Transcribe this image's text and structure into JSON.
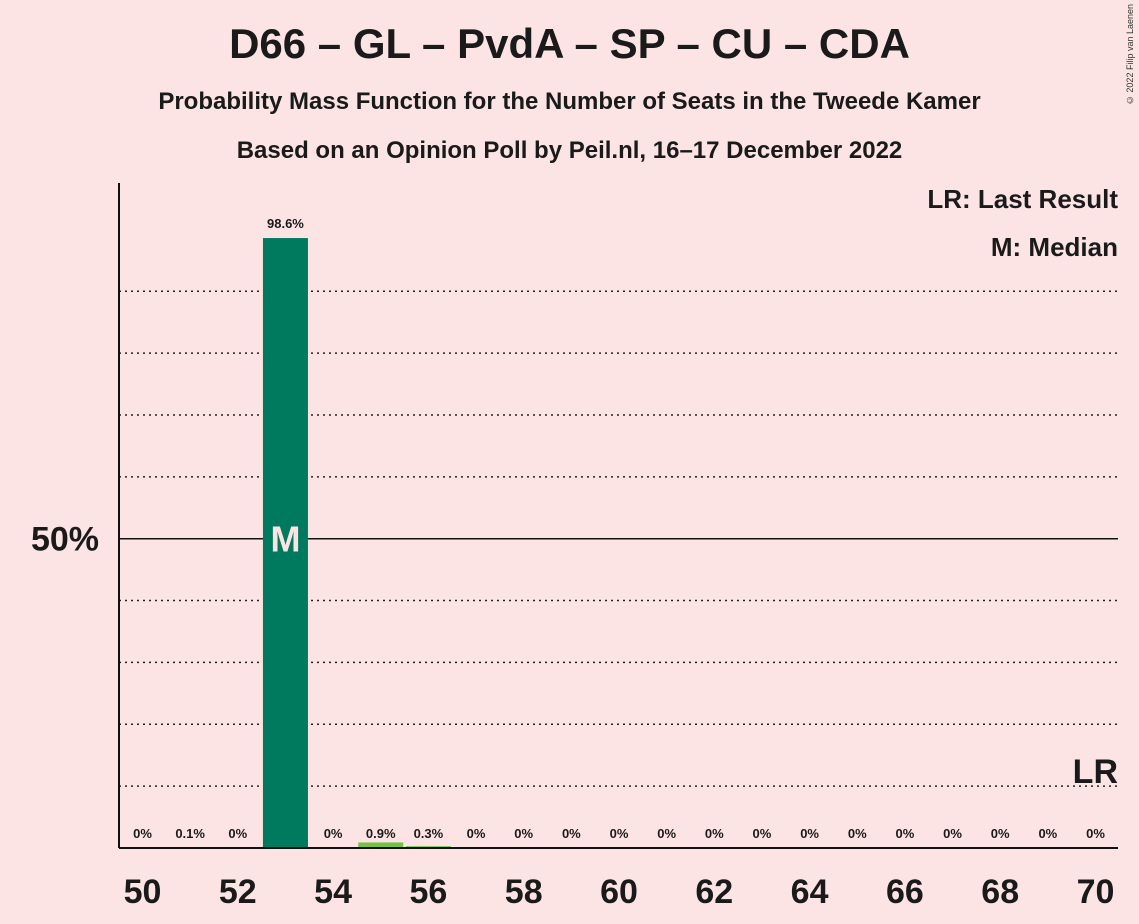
{
  "title": "D66 – GL – PvdA – SP – CU – CDA",
  "subtitle1": "Probability Mass Function for the Number of Seats in the Tweede Kamer",
  "subtitle2": "Based on an Opinion Poll by Peil.nl, 16–17 December 2022",
  "copyright": "© 2022 Filip van Laenen",
  "legend": {
    "lr": "LR: Last Result",
    "m": "M: Median"
  },
  "colors": {
    "background": "#fce4e4",
    "median_bar": "#007a5e",
    "other_bar": "#77c043",
    "text": "#1a1a1a"
  },
  "chart_data": {
    "type": "bar",
    "x": [
      50,
      51,
      52,
      53,
      54,
      55,
      56,
      57,
      58,
      59,
      60,
      61,
      62,
      63,
      64,
      65,
      66,
      67,
      68,
      69,
      70
    ],
    "values": [
      0,
      0.1,
      0,
      98.6,
      0,
      0.9,
      0.3,
      0,
      0,
      0,
      0,
      0,
      0,
      0,
      0,
      0,
      0,
      0,
      0,
      0,
      0
    ],
    "labels": [
      "0%",
      "0.1%",
      "0%",
      "98.6%",
      "0%",
      "0.9%",
      "0.3%",
      "0%",
      "0%",
      "0%",
      "0%",
      "0%",
      "0%",
      "0%",
      "0%",
      "0%",
      "0%",
      "0%",
      "0%",
      "0%",
      "0%"
    ],
    "x_tick_labels": [
      "50",
      "52",
      "54",
      "56",
      "58",
      "60",
      "62",
      "64",
      "66",
      "68",
      "70"
    ],
    "y_tick_label": "50%",
    "y_tick_value": 50,
    "ylim": [
      0,
      107
    ],
    "median": 53,
    "median_label": "M",
    "last_result": 70,
    "last_result_label": "LR",
    "grid": true
  }
}
